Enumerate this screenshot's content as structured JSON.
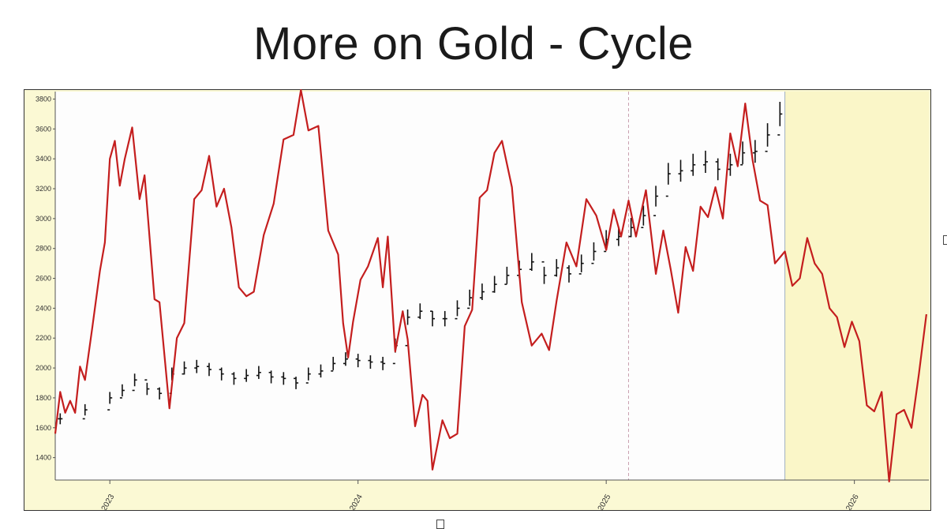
{
  "slide": {
    "title": "More on Gold - Cycle"
  },
  "colors": {
    "price": "#111111",
    "cycle": "#c41e1e",
    "plot_bg": "#fdfdfd",
    "projection_bg": "#faf6c8",
    "frame_bg": "#fbf9d4",
    "divider": "#c8a0b0"
  },
  "chart_data": {
    "type": "line",
    "title": "",
    "xlabel": "",
    "ylabel": "",
    "x_range": [
      2022.78,
      2026.3
    ],
    "ylim": [
      1250,
      3850
    ],
    "y_ticks": [
      1400,
      1600,
      1800,
      2000,
      2200,
      2400,
      2600,
      2800,
      3000,
      3200,
      3400,
      3600,
      3800
    ],
    "x_ticks": [
      {
        "x": 2023,
        "label": "2023"
      },
      {
        "x": 2024,
        "label": "2024"
      },
      {
        "x": 2025,
        "label": "2025"
      },
      {
        "x": 2026,
        "label": "2026"
      }
    ],
    "projection_start": 2025.72,
    "marker_x": 2025.09,
    "grid": false,
    "series": [
      {
        "style": "ohlc-bars",
        "x": [
          2022.8,
          2022.9,
          2023.0,
          2023.05,
          2023.1,
          2023.15,
          2023.2,
          2023.25,
          2023.3,
          2023.35,
          2023.4,
          2023.45,
          2023.5,
          2023.55,
          2023.6,
          2023.65,
          2023.7,
          2023.75,
          2023.8,
          2023.85,
          2023.9,
          2023.95,
          2024.0,
          2024.05,
          2024.1,
          2024.15,
          2024.2,
          2024.25,
          2024.3,
          2024.35,
          2024.4,
          2024.45,
          2024.5,
          2024.55,
          2024.6,
          2024.65,
          2024.7,
          2024.75,
          2024.8,
          2024.85,
          2024.9,
          2024.95,
          2025.0,
          2025.05,
          2025.1,
          2025.15,
          2025.2,
          2025.25,
          2025.3,
          2025.35,
          2025.4,
          2025.45,
          2025.5,
          2025.55,
          2025.6,
          2025.65,
          2025.7
        ],
        "values": [
          1660,
          1720,
          1800,
          1850,
          1920,
          1860,
          1830,
          1960,
          2000,
          2010,
          1990,
          1960,
          1930,
          1950,
          1970,
          1940,
          1930,
          1900,
          1960,
          1980,
          2030,
          2060,
          2050,
          2040,
          2030,
          2150,
          2340,
          2380,
          2330,
          2330,
          2400,
          2470,
          2510,
          2560,
          2620,
          2660,
          2710,
          2620,
          2670,
          2630,
          2700,
          2780,
          2860,
          2880,
          2940,
          3020,
          3150,
          3300,
          3320,
          3360,
          3380,
          3330,
          3360,
          3440,
          3450,
          3560,
          3700
        ]
      },
      {
        "style": "line",
        "x": [
          2022.78,
          2022.8,
          2022.82,
          2022.84,
          2022.86,
          2022.88,
          2022.9,
          2022.93,
          2022.96,
          2022.98,
          2023.0,
          2023.02,
          2023.04,
          2023.06,
          2023.09,
          2023.12,
          2023.14,
          2023.18,
          2023.2,
          2023.24,
          2023.27,
          2023.3,
          2023.34,
          2023.37,
          2023.4,
          2023.43,
          2023.46,
          2023.49,
          2023.52,
          2023.55,
          2023.58,
          2023.62,
          2023.66,
          2023.7,
          2023.74,
          2023.77,
          2023.8,
          2023.84,
          2023.88,
          2023.92,
          2023.94,
          2023.96,
          2023.98,
          2024.01,
          2024.04,
          2024.08,
          2024.1,
          2024.12,
          2024.15,
          2024.18,
          2024.2,
          2024.23,
          2024.26,
          2024.28,
          2024.3,
          2024.34,
          2024.37,
          2024.4,
          2024.43,
          2024.46,
          2024.49,
          2024.52,
          2024.55,
          2024.58,
          2024.62,
          2024.66,
          2024.7,
          2024.74,
          2024.77,
          2024.8,
          2024.84,
          2024.88,
          2024.92,
          2024.96,
          2025.0,
          2025.03,
          2025.06,
          2025.09,
          2025.12,
          2025.16,
          2025.2,
          2025.23,
          2025.26,
          2025.29,
          2025.32,
          2025.35,
          2025.38,
          2025.41,
          2025.44,
          2025.47,
          2025.5,
          2025.53,
          2025.56,
          2025.59,
          2025.62,
          2025.65,
          2025.68,
          2025.72,
          2025.75,
          2025.78,
          2025.81,
          2025.84,
          2025.87,
          2025.9,
          2025.93,
          2025.96,
          2025.99,
          2026.02,
          2026.05,
          2026.08,
          2026.11,
          2026.14,
          2026.17,
          2026.2,
          2026.23,
          2026.26,
          2026.29
        ],
        "values": [
          1560,
          1840,
          1700,
          1780,
          1700,
          2010,
          1920,
          2280,
          2650,
          2840,
          3400,
          3520,
          3220,
          3400,
          3610,
          3130,
          3290,
          2460,
          2440,
          1730,
          2200,
          2300,
          3130,
          3190,
          3420,
          3080,
          3200,
          2940,
          2540,
          2480,
          2510,
          2890,
          3100,
          3530,
          3560,
          3860,
          3590,
          3620,
          2920,
          2760,
          2300,
          2070,
          2310,
          2590,
          2680,
          2870,
          2540,
          2880,
          2110,
          2380,
          2190,
          1610,
          1820,
          1780,
          1320,
          1650,
          1530,
          1560,
          2280,
          2390,
          3140,
          3190,
          3440,
          3520,
          3210,
          2440,
          2150,
          2230,
          2120,
          2450,
          2840,
          2680,
          3130,
          3020,
          2790,
          3060,
          2880,
          3120,
          2880,
          3190,
          2630,
          2920,
          2660,
          2370,
          2810,
          2650,
          3080,
          3010,
          3210,
          3000,
          3570,
          3350,
          3770,
          3390,
          3120,
          3090,
          2700,
          2780,
          2550,
          2600,
          2870,
          2700,
          2630,
          2400,
          2340,
          2140,
          2310,
          2180,
          1750,
          1710,
          1840,
          1240,
          1690,
          1720,
          1600,
          1960,
          2360
        ]
      }
    ]
  }
}
